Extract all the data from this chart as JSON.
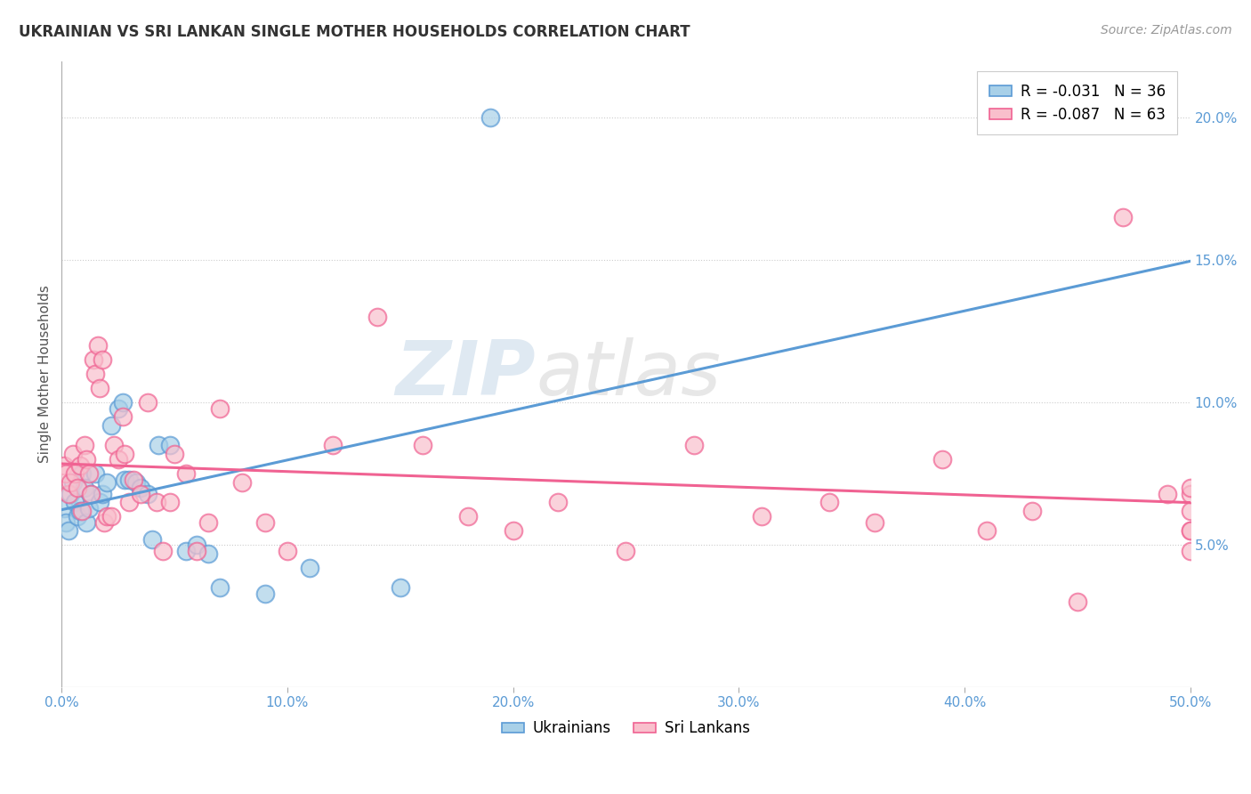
{
  "title": "UKRAINIAN VS SRI LANKAN SINGLE MOTHER HOUSEHOLDS CORRELATION CHART",
  "source": "Source: ZipAtlas.com",
  "ylabel": "Single Mother Households",
  "xlim": [
    0.0,
    0.5
  ],
  "ylim": [
    0.0,
    0.22
  ],
  "x_ticks": [
    0.0,
    0.1,
    0.2,
    0.3,
    0.4,
    0.5
  ],
  "x_tick_labels": [
    "0.0%",
    "10.0%",
    "20.0%",
    "30.0%",
    "40.0%",
    "50.0%"
  ],
  "y_ticks": [
    0.05,
    0.1,
    0.15,
    0.2
  ],
  "y_tick_labels": [
    "5.0%",
    "10.0%",
    "15.0%",
    "20.0%"
  ],
  "legend_label1": "R = -0.031   N = 36",
  "legend_label2": "R = -0.087   N = 63",
  "color_ukrainian": "#a8d0e8",
  "color_srilanka": "#f9bfcc",
  "color_line_ukrainian": "#5b9bd5",
  "color_line_srilanka": "#f06292",
  "watermark": "ZIPatlas",
  "ukrainians_x": [
    0.001,
    0.002,
    0.003,
    0.004,
    0.005,
    0.006,
    0.007,
    0.008,
    0.009,
    0.01,
    0.011,
    0.012,
    0.013,
    0.015,
    0.017,
    0.018,
    0.02,
    0.022,
    0.025,
    0.027,
    0.028,
    0.03,
    0.033,
    0.035,
    0.038,
    0.04,
    0.043,
    0.048,
    0.055,
    0.06,
    0.065,
    0.07,
    0.09,
    0.11,
    0.15,
    0.19
  ],
  "ukrainians_y": [
    0.063,
    0.058,
    0.055,
    0.068,
    0.072,
    0.065,
    0.06,
    0.062,
    0.075,
    0.07,
    0.058,
    0.063,
    0.068,
    0.075,
    0.065,
    0.068,
    0.072,
    0.092,
    0.098,
    0.1,
    0.073,
    0.073,
    0.072,
    0.07,
    0.068,
    0.052,
    0.085,
    0.085,
    0.048,
    0.05,
    0.047,
    0.035,
    0.033,
    0.042,
    0.035,
    0.2
  ],
  "srilankans_x": [
    0.001,
    0.002,
    0.003,
    0.004,
    0.005,
    0.006,
    0.007,
    0.008,
    0.009,
    0.01,
    0.011,
    0.012,
    0.013,
    0.014,
    0.015,
    0.016,
    0.017,
    0.018,
    0.019,
    0.02,
    0.022,
    0.023,
    0.025,
    0.027,
    0.028,
    0.03,
    0.032,
    0.035,
    0.038,
    0.042,
    0.045,
    0.048,
    0.05,
    0.055,
    0.06,
    0.065,
    0.07,
    0.08,
    0.09,
    0.1,
    0.12,
    0.14,
    0.16,
    0.18,
    0.2,
    0.22,
    0.25,
    0.28,
    0.31,
    0.34,
    0.36,
    0.39,
    0.41,
    0.43,
    0.45,
    0.47,
    0.49,
    0.5,
    0.5,
    0.5,
    0.5,
    0.5,
    0.5
  ],
  "srilankans_y": [
    0.078,
    0.075,
    0.068,
    0.072,
    0.082,
    0.075,
    0.07,
    0.078,
    0.062,
    0.085,
    0.08,
    0.075,
    0.068,
    0.115,
    0.11,
    0.12,
    0.105,
    0.115,
    0.058,
    0.06,
    0.06,
    0.085,
    0.08,
    0.095,
    0.082,
    0.065,
    0.073,
    0.068,
    0.1,
    0.065,
    0.048,
    0.065,
    0.082,
    0.075,
    0.048,
    0.058,
    0.098,
    0.072,
    0.058,
    0.048,
    0.085,
    0.13,
    0.085,
    0.06,
    0.055,
    0.065,
    0.048,
    0.085,
    0.06,
    0.065,
    0.058,
    0.08,
    0.055,
    0.062,
    0.03,
    0.165,
    0.068,
    0.055,
    0.062,
    0.048,
    0.068,
    0.055,
    0.07
  ]
}
